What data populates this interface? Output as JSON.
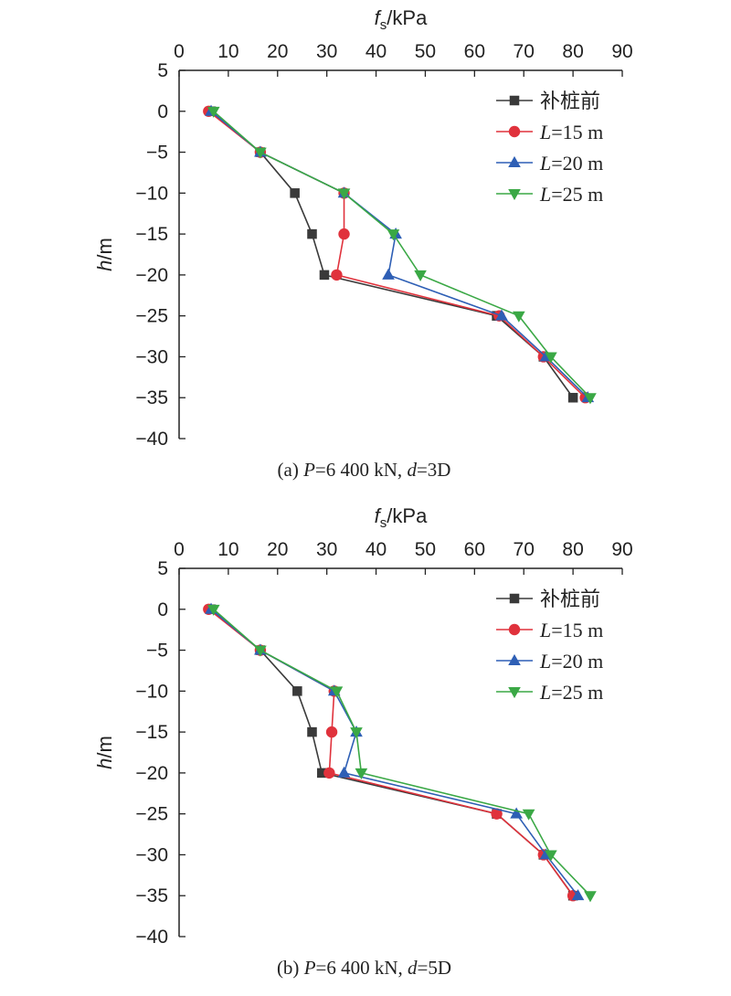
{
  "chart_data": [
    {
      "type": "line",
      "caption": {
        "prefix": "(a) ",
        "p_var": "P",
        "p_rest": "=6 400 kN, ",
        "d_var": "d",
        "d_rest": "=3D"
      },
      "xlabel": {
        "var": "f",
        "sub": "s",
        "unit": "/kPa"
      },
      "ylabel": {
        "var": "h",
        "unit": "/m"
      },
      "xlim": [
        0,
        90
      ],
      "ylim": [
        -40,
        5
      ],
      "xticks": [
        "0",
        "10",
        "20",
        "30",
        "40",
        "50",
        "60",
        "70",
        "80",
        "90"
      ],
      "yticks": [
        "5",
        "0",
        "−5",
        "−10",
        "−15",
        "−20",
        "−25",
        "−30",
        "−35",
        "−40"
      ],
      "legend_position": "top-right",
      "series": [
        {
          "name": "补桩前",
          "color": "#3a3a3a",
          "marker": "square",
          "x": [
            6.5,
            16.5,
            23.5,
            27,
            29.5,
            64.5,
            74,
            80
          ],
          "y": [
            0,
            -5,
            -10,
            -15,
            -20,
            -25,
            -30,
            -35
          ]
        },
        {
          "name": {
            "var": "L",
            "rest": "=15 m"
          },
          "color": "#e0323c",
          "marker": "circle",
          "x": [
            6,
            16.5,
            33.5,
            33.5,
            32,
            65,
            74,
            82.5
          ],
          "y": [
            0,
            -5,
            -10,
            -15,
            -20,
            -25,
            -30,
            -35
          ]
        },
        {
          "name": {
            "var": "L",
            "rest": "=20 m"
          },
          "color": "#2e5fb5",
          "marker": "triangle-up",
          "x": [
            6.5,
            16.5,
            33.5,
            44,
            42.5,
            65.5,
            74.5,
            83
          ],
          "y": [
            0,
            -5,
            -10,
            -15,
            -20,
            -25,
            -30,
            -35
          ]
        },
        {
          "name": {
            "var": "L",
            "rest": "=25 m"
          },
          "color": "#3aa845",
          "marker": "triangle-down",
          "x": [
            7,
            16.5,
            33.5,
            43.5,
            49,
            69,
            75.5,
            83.5
          ],
          "y": [
            0,
            -5,
            -10,
            -15,
            -20,
            -25,
            -30,
            -35
          ]
        }
      ]
    },
    {
      "type": "line",
      "caption": {
        "prefix": "(b) ",
        "p_var": "P",
        "p_rest": "=6 400 kN, ",
        "d_var": "d",
        "d_rest": "=5D"
      },
      "xlabel": {
        "var": "f",
        "sub": "s",
        "unit": "/kPa"
      },
      "ylabel": {
        "var": "h",
        "unit": "/m"
      },
      "xlim": [
        0,
        90
      ],
      "ylim": [
        -40,
        5
      ],
      "xticks": [
        "0",
        "10",
        "20",
        "30",
        "40",
        "50",
        "60",
        "70",
        "80",
        "90"
      ],
      "yticks": [
        "5",
        "0",
        "−5",
        "−10",
        "−15",
        "−20",
        "−25",
        "−30",
        "−35",
        "−40"
      ],
      "legend_position": "top-right",
      "series": [
        {
          "name": "补桩前",
          "color": "#3a3a3a",
          "marker": "square",
          "x": [
            6.5,
            16.5,
            24,
            27,
            29,
            64.5,
            74,
            80
          ],
          "y": [
            0,
            -5,
            -10,
            -15,
            -20,
            -25,
            -30,
            -35
          ]
        },
        {
          "name": {
            "var": "L",
            "rest": "=15 m"
          },
          "color": "#e0323c",
          "marker": "circle",
          "x": [
            6,
            16.5,
            31.5,
            31,
            30.5,
            64.5,
            74,
            80
          ],
          "y": [
            0,
            -5,
            -10,
            -15,
            -20,
            -25,
            -30,
            -35
          ]
        },
        {
          "name": {
            "var": "L",
            "rest": "=20 m"
          },
          "color": "#2e5fb5",
          "marker": "triangle-up",
          "x": [
            6.5,
            16.5,
            31.5,
            36,
            33.5,
            68.5,
            74.5,
            81
          ],
          "y": [
            0,
            -5,
            -10,
            -15,
            -20,
            -25,
            -30,
            -35
          ]
        },
        {
          "name": {
            "var": "L",
            "rest": "=25 m"
          },
          "color": "#3aa845",
          "marker": "triangle-down",
          "x": [
            7,
            16.5,
            32,
            36,
            37,
            71,
            75.5,
            83.5
          ],
          "y": [
            0,
            -5,
            -10,
            -15,
            -20,
            -25,
            -30,
            -35
          ]
        }
      ]
    }
  ]
}
